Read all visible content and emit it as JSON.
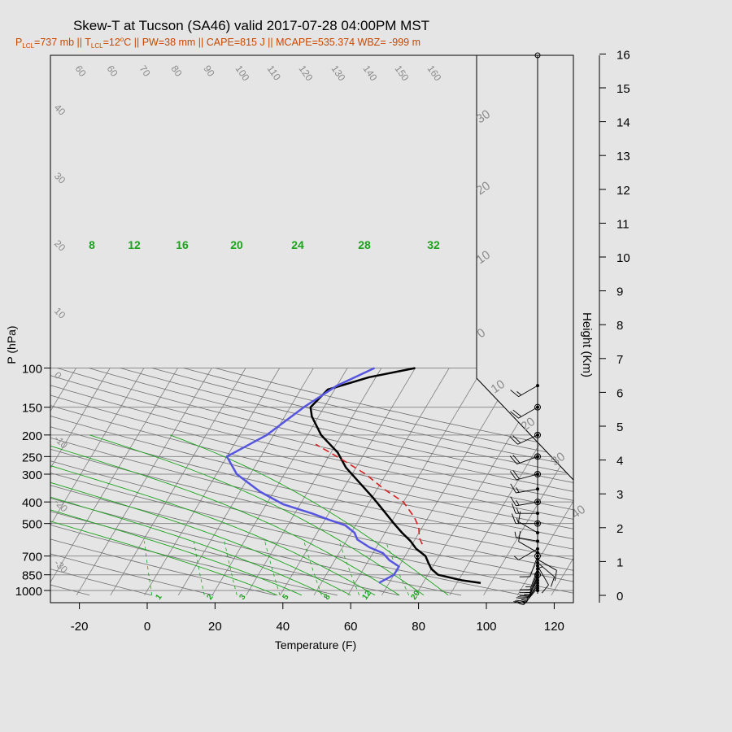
{
  "title": "Skew-T at Tucson (SA46) valid 2017-07-28 04:00PM MST",
  "subtitle_parts": [
    "P",
    "LCL",
    "=737 mb || T",
    "LCL",
    "=12",
    "o",
    "C || PW=38 mm || CAPE=815 J || MCAPE=535.374 WBZ= -999 m"
  ],
  "colors": {
    "background": "#e5e5e5",
    "temperature": "#000000",
    "dewpoint": "#5555e0",
    "parcel": "#d42020",
    "moist_adiabats": "#1aa31a",
    "mixing_ratio": "#1aa31a",
    "isotherms": "#808080",
    "isobars": "#8c8c8c",
    "subtitle": "#c84800"
  },
  "chart_data": {
    "type": "line",
    "xlabel": "Temperature (F)",
    "ylabel": "P (hPa)",
    "xlim": [
      -28,
      125
    ],
    "ylim": [
      1050,
      100
    ],
    "y_scale": "log",
    "x_ticks": [
      "-20",
      "0",
      "20",
      "40",
      "60",
      "80",
      "100",
      "120"
    ],
    "x_tick_values": [
      -20,
      0,
      20,
      40,
      60,
      80,
      100,
      120
    ],
    "y_ticks": [
      "100",
      "150",
      "200",
      "250",
      "300",
      "400",
      "500",
      "700",
      "850",
      "1000"
    ],
    "y_tick_values": [
      100,
      150,
      200,
      250,
      300,
      400,
      500,
      700,
      850,
      1000
    ],
    "height_axis_label": "Height (Km)",
    "height_ticks": [
      "0",
      "1",
      "2",
      "3",
      "4",
      "5",
      "6",
      "7",
      "8",
      "9",
      "10",
      "11",
      "12",
      "13",
      "14",
      "15",
      "16"
    ],
    "isotherm_labels": [
      "60",
      "60",
      "70",
      "80",
      "90",
      "100",
      "110",
      "120",
      "130",
      "140",
      "150",
      "160"
    ],
    "dry_adiabat_labels_left": [
      "40",
      "30",
      "20",
      "10",
      "0",
      "-10",
      "-20",
      "-30"
    ],
    "dry_adiabat_labels_right": [
      "30",
      "20",
      "10",
      "0",
      "10",
      "20",
      "30",
      "40"
    ],
    "moist_adiabat_labels": [
      "8",
      "12",
      "16",
      "20",
      "24",
      "28",
      "32"
    ],
    "mixing_ratio_labels": [
      "1",
      "2",
      "3",
      "5",
      "8",
      "12",
      "20"
    ],
    "series": [
      {
        "name": "",
        "role": "temperature",
        "points": [
          [
            97,
            925
          ],
          [
            91,
            900
          ],
          [
            83,
            850
          ],
          [
            80,
            800
          ],
          [
            78,
            750
          ],
          [
            76,
            700
          ],
          [
            72,
            650
          ],
          [
            69,
            600
          ],
          [
            65,
            550
          ],
          [
            61,
            500
          ],
          [
            55,
            430
          ],
          [
            50,
            380
          ],
          [
            44,
            330
          ],
          [
            37,
            280
          ],
          [
            32,
            240
          ],
          [
            24,
            200
          ],
          [
            18,
            165
          ],
          [
            16,
            150
          ],
          [
            18,
            125
          ],
          [
            28,
            110
          ],
          [
            40,
            100
          ]
        ]
      },
      {
        "name": "",
        "role": "dewpoint",
        "points": [
          [
            67,
            925
          ],
          [
            70,
            850
          ],
          [
            70,
            780
          ],
          [
            66,
            730
          ],
          [
            63,
            680
          ],
          [
            58,
            640
          ],
          [
            53,
            590
          ],
          [
            51,
            550
          ],
          [
            47,
            510
          ],
          [
            41,
            480
          ],
          [
            35,
            450
          ],
          [
            25,
            410
          ],
          [
            16,
            360
          ],
          [
            6,
            300
          ],
          [
            0,
            250
          ],
          [
            8,
            200
          ],
          [
            14,
            150
          ],
          [
            20,
            120
          ],
          [
            28,
            100
          ]
        ]
      },
      {
        "name": "",
        "role": "parcel",
        "points": [
          [
            73,
            620
          ],
          [
            71,
            580
          ],
          [
            69,
            520
          ],
          [
            66,
            470
          ],
          [
            60,
            400
          ],
          [
            52,
            350
          ],
          [
            44,
            300
          ],
          [
            35,
            260
          ],
          [
            24,
            220
          ]
        ]
      }
    ],
    "wind_barbs": [
      {
        "p": 1000,
        "dir": 0,
        "spd": 5
      },
      {
        "p": 975,
        "dir": 220,
        "spd": 15
      },
      {
        "p": 950,
        "dir": 215,
        "spd": 15
      },
      {
        "p": 925,
        "dir": 210,
        "spd": 15
      },
      {
        "p": 900,
        "dir": 210,
        "spd": 15
      },
      {
        "p": 875,
        "dir": 205,
        "spd": 15
      },
      {
        "p": 850,
        "dir": 200,
        "spd": 15
      },
      {
        "p": 825,
        "dir": 200,
        "spd": 15
      },
      {
        "p": 800,
        "dir": 200,
        "spd": 15
      },
      {
        "p": 775,
        "dir": 150,
        "spd": 10
      },
      {
        "p": 750,
        "dir": 130,
        "spd": 10
      },
      {
        "p": 725,
        "dir": 120,
        "spd": 10
      },
      {
        "p": 700,
        "dir": 200,
        "spd": 10
      },
      {
        "p": 675,
        "dir": 300,
        "spd": 10
      },
      {
        "p": 650,
        "dir": 240,
        "spd": 5
      },
      {
        "p": 600,
        "dir": 280,
        "spd": 5
      },
      {
        "p": 550,
        "dir": 300,
        "spd": 10
      },
      {
        "p": 500,
        "dir": 270,
        "spd": 15
      },
      {
        "p": 450,
        "dir": 270,
        "spd": 15
      },
      {
        "p": 400,
        "dir": 260,
        "spd": 15
      },
      {
        "p": 350,
        "dir": 260,
        "spd": 15
      },
      {
        "p": 300,
        "dir": 255,
        "spd": 20
      },
      {
        "p": 250,
        "dir": 250,
        "spd": 20
      },
      {
        "p": 200,
        "dir": 245,
        "spd": 20
      },
      {
        "p": 150,
        "dir": 240,
        "spd": 20
      },
      {
        "p": 120,
        "dir": 240,
        "spd": 15
      }
    ]
  }
}
